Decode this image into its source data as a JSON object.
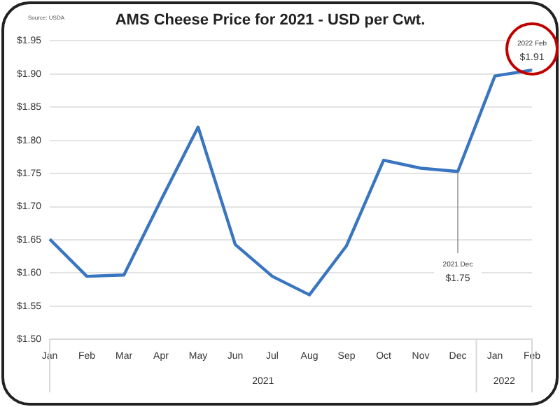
{
  "chart_data": {
    "type": "line",
    "title": "AMS Cheese Price for 2021 - USD per Cwt.",
    "categories": [
      "Jan",
      "Feb",
      "Mar",
      "Apr",
      "May",
      "Jun",
      "Jul",
      "Aug",
      "Sep",
      "Oct",
      "Nov",
      "Dec",
      "Jan",
      "Feb"
    ],
    "series": [
      {
        "color": "#3a75c0",
        "values": [
          1.651,
          1.595,
          1.597,
          1.71,
          1.82,
          1.643,
          1.595,
          1.567,
          1.641,
          1.77,
          1.758,
          1.753,
          1.897,
          1.906
        ]
      }
    ],
    "ylim": [
      1.5,
      1.95
    ],
    "yticks": [
      {
        "value": 1.5,
        "label": "$1.50"
      },
      {
        "value": 1.55,
        "label": "$1.55"
      },
      {
        "value": 1.6,
        "label": "$1.60"
      },
      {
        "value": 1.65,
        "label": "$1.65"
      },
      {
        "value": 1.7,
        "label": "$1.70"
      },
      {
        "value": 1.75,
        "label": "$1.75"
      },
      {
        "value": 1.8,
        "label": "$1.80"
      },
      {
        "value": 1.85,
        "label": "$1.85"
      },
      {
        "value": 1.9,
        "label": "$1.90"
      },
      {
        "value": 1.95,
        "label": "$1.95"
      }
    ],
    "grid": "y",
    "legend": false,
    "marker": "none",
    "line_style": "solid",
    "annotations": [
      "Source: USDA",
      "2021",
      "2022",
      {
        "text": "2021 Dec\n$1.75",
        "x": "Dec",
        "y": 1.75
      },
      "2022 Feb\n$1.91"
    ]
  }
}
